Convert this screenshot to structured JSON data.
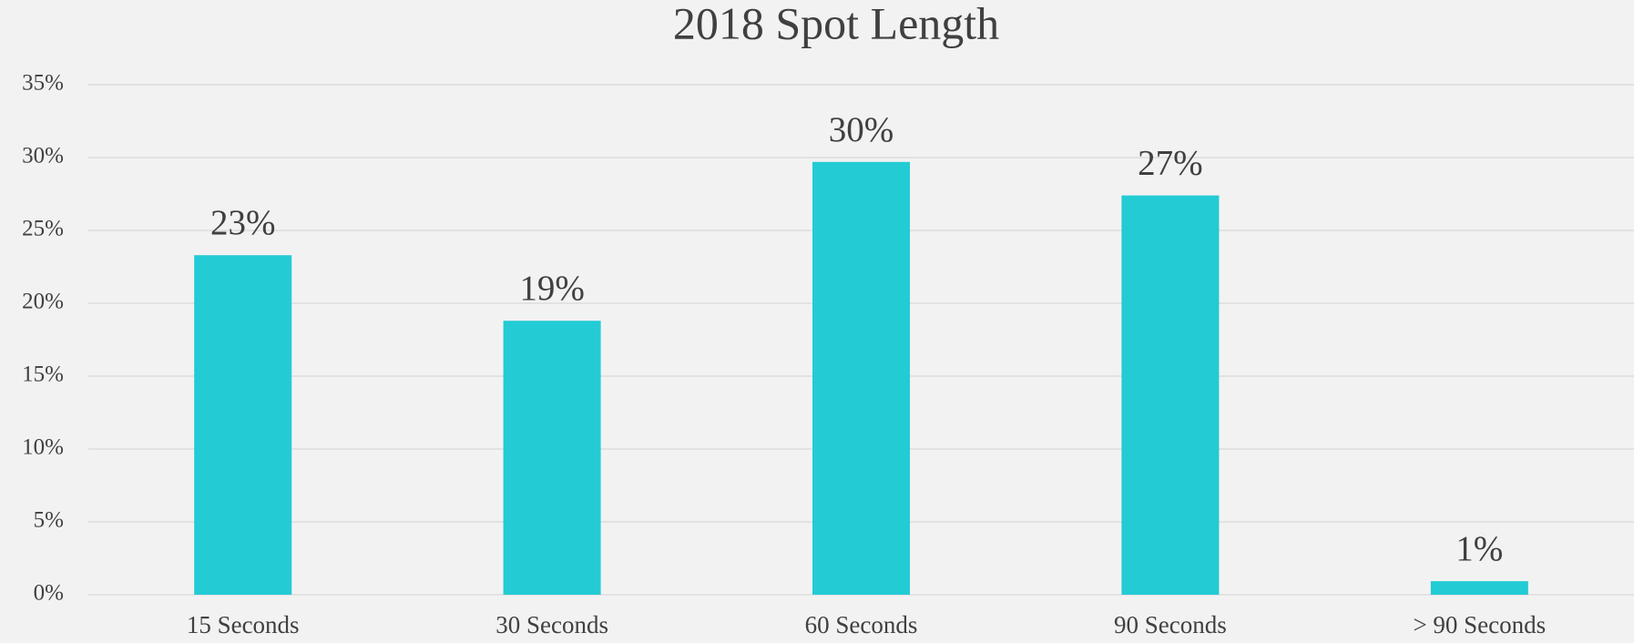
{
  "chart_data": {
    "type": "bar",
    "title": "2018 Spot Length",
    "categories": [
      "15 Seconds",
      "30 Seconds",
      "60 Seconds",
      "90 Seconds",
      "> 90 Seconds"
    ],
    "values": [
      23.3,
      18.8,
      29.7,
      27.4,
      0.93
    ],
    "value_labels": [
      "23%",
      "19%",
      "30%",
      "27%",
      "1%"
    ],
    "color": "#23cbd4",
    "ylim": [
      0,
      35
    ],
    "yticks": [
      {
        "value": 0,
        "label": "0%"
      },
      {
        "value": 5,
        "label": "5%"
      },
      {
        "value": 10,
        "label": "10%"
      },
      {
        "value": 15,
        "label": "15%"
      },
      {
        "value": 20,
        "label": "20%"
      },
      {
        "value": 25,
        "label": "25%"
      },
      {
        "value": 30,
        "label": "30%"
      },
      {
        "value": 35,
        "label": "35%"
      }
    ],
    "grid": true
  }
}
